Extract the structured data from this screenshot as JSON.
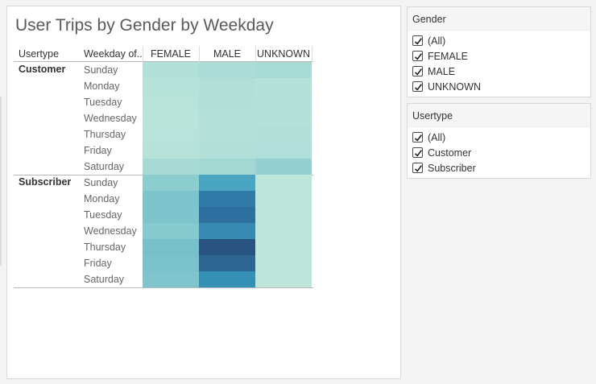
{
  "title": "User Trips by Gender by Weekday",
  "table": {
    "row_header_1": "Usertype",
    "row_header_2": "Weekday of..",
    "columns": [
      "FEMALE",
      "MALE",
      "UNKNOWN"
    ],
    "groups": [
      {
        "label": "Customer",
        "days": [
          "Sunday",
          "Monday",
          "Tuesday",
          "Wednesday",
          "Thursday",
          "Friday",
          "Saturday"
        ],
        "colors": [
          [
            "#b0e0d7",
            "#abddd6",
            "#a6dbd6"
          ],
          [
            "#b6e3d9",
            "#b0e0d8",
            "#b3e2d9"
          ],
          [
            "#b7e3d9",
            "#b0e0d8",
            "#b3e1d9"
          ],
          [
            "#b8e4da",
            "#b3e1d9",
            "#b3e2d8"
          ],
          [
            "#b8e3da",
            "#b3e1d9",
            "#b1e0d9"
          ],
          [
            "#b6e2d9",
            "#b0e0d8",
            "#afdfd8"
          ],
          [
            "#a6d9d3",
            "#a4d8d3",
            "#94cfd4"
          ]
        ]
      },
      {
        "label": "Subscriber",
        "days": [
          "Sunday",
          "Monday",
          "Tuesday",
          "Wednesday",
          "Thursday",
          "Friday",
          "Saturday"
        ],
        "colors": [
          [
            "#8ccdd0",
            "#4aa5c3",
            "#bde5da"
          ],
          [
            "#7ec4cc",
            "#2f7aa6",
            "#bde5da"
          ],
          [
            "#7ec4cc",
            "#2d6f9e",
            "#bde5da"
          ],
          [
            "#86c9ce",
            "#3689b0",
            "#bde5da"
          ],
          [
            "#77c0ca",
            "#28527f",
            "#bde5da"
          ],
          [
            "#79c1cb",
            "#2c6492",
            "#bde5da"
          ],
          [
            "#80c5cd",
            "#3590b5",
            "#bde5da"
          ]
        ]
      }
    ]
  },
  "filters": [
    {
      "title": "Gender",
      "items": [
        {
          "label": "(All)",
          "checked": true
        },
        {
          "label": "FEMALE",
          "checked": true
        },
        {
          "label": "MALE",
          "checked": true
        },
        {
          "label": "UNKNOWN",
          "checked": true
        }
      ]
    },
    {
      "title": "Usertype",
      "items": [
        {
          "label": "(All)",
          "checked": true
        },
        {
          "label": "Customer",
          "checked": true
        },
        {
          "label": "Subscriber",
          "checked": true
        }
      ]
    }
  ]
}
